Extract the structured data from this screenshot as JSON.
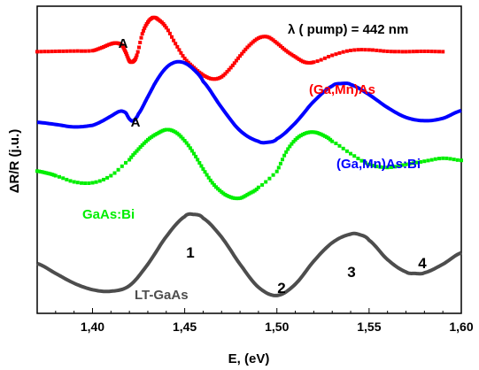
{
  "chart_data": {
    "type": "line",
    "title": "",
    "xlabel": "E, (eV)",
    "ylabel": "ΔR/R (j.u.)",
    "xlim": [
      1.37,
      1.6
    ],
    "ylim": [
      0,
      1
    ],
    "xticks": [
      1.4,
      1.45,
      1.5,
      1.55,
      1.6
    ],
    "xtick_labels": [
      "1,40",
      "1,45",
      "1,50",
      "1,55",
      "1,60"
    ],
    "yticks_shown": false,
    "grid": false,
    "annotations": {
      "pump": "λ ( pump) = 442 nm",
      "peak_a_1": "A",
      "peak_a_2": "A",
      "n1": "1",
      "n2": "2",
      "n3": "3",
      "n4": "4"
    },
    "series": [
      {
        "name": "(Ga,Mn)As",
        "color": "#ff0000",
        "style": "markers",
        "x": [
          1.37,
          1.38,
          1.39,
          1.4,
          1.405,
          1.41,
          1.413,
          1.416,
          1.418,
          1.42,
          1.422,
          1.424,
          1.427,
          1.43,
          1.433,
          1.436,
          1.44,
          1.445,
          1.45,
          1.455,
          1.46,
          1.465,
          1.47,
          1.475,
          1.48,
          1.485,
          1.49,
          1.495,
          1.5,
          1.505,
          1.51,
          1.515,
          1.52,
          1.53,
          1.54,
          1.55,
          1.56,
          1.57,
          1.58,
          1.59
        ],
        "y": [
          0.852,
          0.853,
          0.854,
          0.855,
          0.865,
          0.877,
          0.88,
          0.873,
          0.85,
          0.822,
          0.82,
          0.84,
          0.91,
          0.948,
          0.963,
          0.955,
          0.93,
          0.878,
          0.83,
          0.8,
          0.776,
          0.763,
          0.77,
          0.8,
          0.838,
          0.872,
          0.896,
          0.9,
          0.88,
          0.855,
          0.835,
          0.818,
          0.818,
          0.84,
          0.856,
          0.858,
          0.853,
          0.852,
          0.853,
          0.852
        ]
      },
      {
        "name": "(Ga,Mn)As:Bi",
        "color": "#0000ff",
        "style": "line",
        "x": [
          1.37,
          1.38,
          1.39,
          1.4,
          1.405,
          1.41,
          1.415,
          1.418,
          1.42,
          1.422,
          1.425,
          1.43,
          1.435,
          1.44,
          1.445,
          1.45,
          1.455,
          1.46,
          1.47,
          1.48,
          1.49,
          1.495,
          1.5,
          1.51,
          1.52,
          1.53,
          1.535,
          1.54,
          1.55,
          1.56,
          1.57,
          1.58,
          1.59,
          1.6
        ],
        "y": [
          0.622,
          0.615,
          0.607,
          0.612,
          0.625,
          0.642,
          0.658,
          0.653,
          0.633,
          0.627,
          0.65,
          0.705,
          0.76,
          0.8,
          0.818,
          0.815,
          0.793,
          0.755,
          0.67,
          0.595,
          0.56,
          0.557,
          0.568,
          0.62,
          0.69,
          0.74,
          0.748,
          0.745,
          0.712,
          0.67,
          0.638,
          0.627,
          0.635,
          0.66
        ]
      },
      {
        "name": "GaAs:Bi",
        "color": "#00ee00",
        "style": "markers",
        "x": [
          1.37,
          1.375,
          1.38,
          1.39,
          1.4,
          1.41,
          1.42,
          1.425,
          1.43,
          1.435,
          1.44,
          1.445,
          1.45,
          1.455,
          1.46,
          1.465,
          1.47,
          1.475,
          1.48,
          1.485,
          1.49,
          1.5,
          1.505,
          1.51,
          1.515,
          1.52,
          1.525,
          1.53,
          1.54,
          1.55,
          1.56,
          1.57,
          1.58,
          1.59,
          1.6
        ],
        "y": [
          0.463,
          0.457,
          0.448,
          0.428,
          0.425,
          0.448,
          0.5,
          0.535,
          0.565,
          0.585,
          0.598,
          0.59,
          0.562,
          0.52,
          0.47,
          0.425,
          0.395,
          0.378,
          0.375,
          0.39,
          0.41,
          0.462,
          0.525,
          0.565,
          0.585,
          0.59,
          0.58,
          0.56,
          0.52,
          0.485,
          0.475,
          0.485,
          0.495,
          0.505,
          0.498
        ]
      },
      {
        "name": "LT-GaAs",
        "color": "#4d4d4d",
        "style": "line",
        "x": [
          1.37,
          1.38,
          1.39,
          1.4,
          1.41,
          1.42,
          1.43,
          1.44,
          1.45,
          1.455,
          1.46,
          1.47,
          1.48,
          1.49,
          1.5,
          1.51,
          1.52,
          1.53,
          1.54,
          1.545,
          1.55,
          1.56,
          1.57,
          1.575,
          1.58,
          1.59,
          1.6
        ],
        "y": [
          0.162,
          0.13,
          0.098,
          0.077,
          0.072,
          0.09,
          0.16,
          0.25,
          0.315,
          0.322,
          0.31,
          0.248,
          0.16,
          0.085,
          0.058,
          0.095,
          0.17,
          0.23,
          0.258,
          0.256,
          0.238,
          0.175,
          0.135,
          0.13,
          0.132,
          0.16,
          0.197
        ]
      }
    ]
  }
}
